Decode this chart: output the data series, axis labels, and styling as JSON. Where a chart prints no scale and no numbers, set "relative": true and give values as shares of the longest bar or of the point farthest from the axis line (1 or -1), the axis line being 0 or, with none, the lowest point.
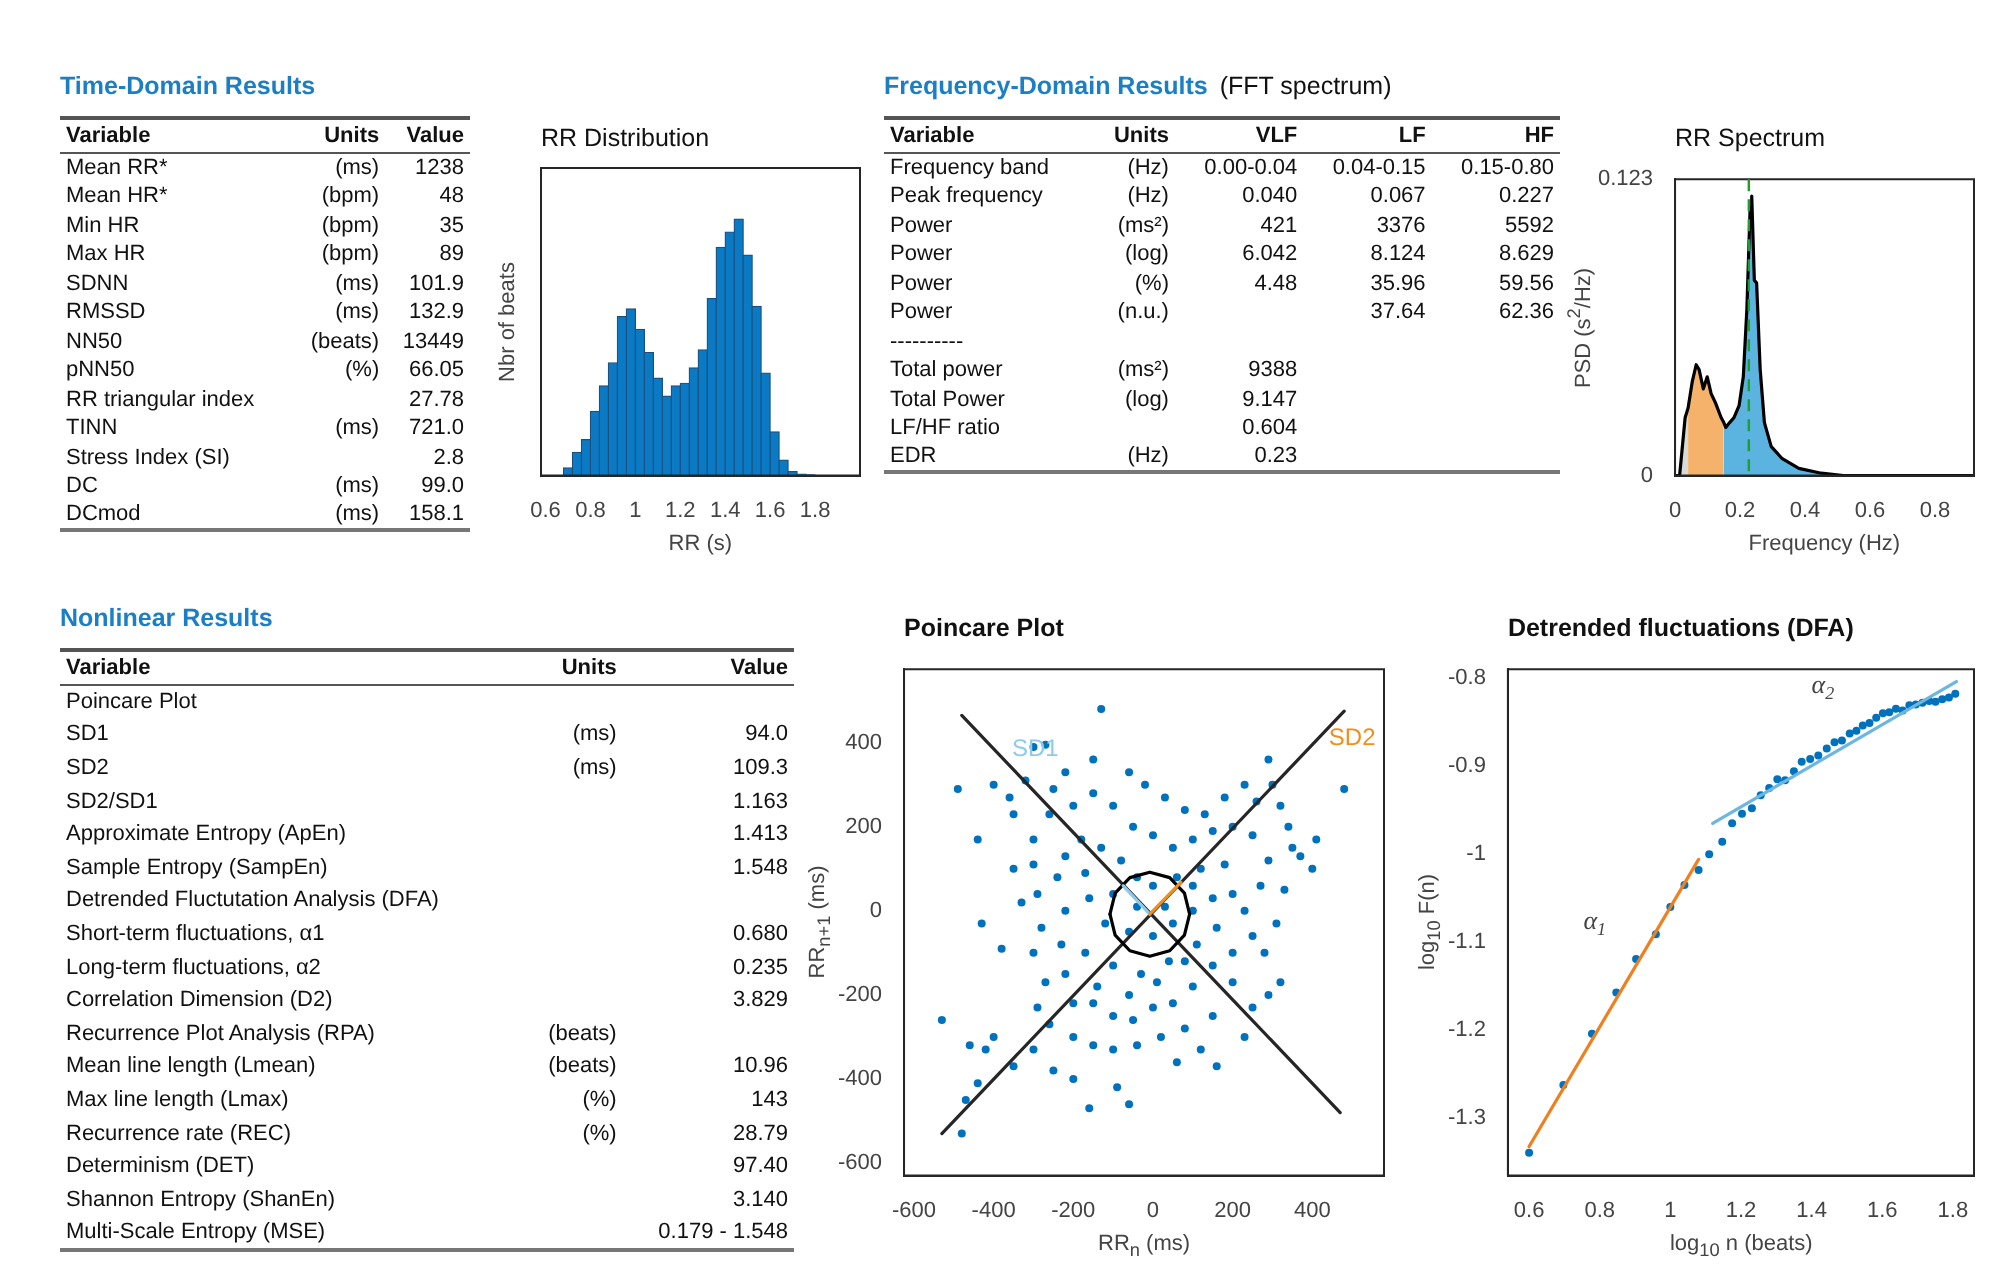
{
  "chart_data": [
    {
      "type": "other",
      "title": "Time-Domain Results",
      "categories": [
        "Variable",
        "Units",
        "Value"
      ],
      "annotations": [
        "Mean RR*",
        "(ms)",
        "1238",
        "Mean HR*",
        "(bpm)",
        "48",
        "Min HR",
        "(bpm)",
        "35",
        "Max HR",
        "(bpm)",
        "89",
        "SDNN",
        "(ms)",
        "101.9",
        "RMSSD",
        "(ms)",
        "132.9",
        "NN50",
        "(beats)",
        "13449",
        "pNN50",
        "(%)",
        "66.05",
        "RR triangular index",
        null,
        "27.78",
        "TINN",
        "(ms)",
        "721.0",
        "Stress Index (SI)",
        null,
        "2.8",
        "DC",
        "(ms)",
        "99.0",
        "DCmod",
        "(ms)",
        "158.1"
      ]
    },
    {
      "type": "bar",
      "title": "RR Distribution",
      "xlabel": "RR (s)",
      "ylabel": "Nbr of beats",
      "relative": true,
      "color": "#0b7ac4",
      "x": [
        0.7,
        0.74,
        0.78,
        0.82,
        0.86,
        0.9,
        0.94,
        0.98,
        1.02,
        1.06,
        1.1,
        1.14,
        1.18,
        1.22,
        1.26,
        1.3,
        1.34,
        1.38,
        1.42,
        1.46,
        1.5,
        1.54,
        1.58,
        1.62,
        1.66,
        1.7,
        1.74,
        1.78
      ],
      "values": [
        0.03,
        0.09,
        0.14,
        0.25,
        0.35,
        0.44,
        0.62,
        0.65,
        0.57,
        0.48,
        0.38,
        0.31,
        0.35,
        0.36,
        0.42,
        0.49,
        0.69,
        0.89,
        0.95,
        1,
        0.86,
        0.66,
        0.4,
        0.17,
        0.06,
        0.015,
        0.006,
        0.003
      ],
      "tick_labels": "x",
      "xlim": [
        0.58,
        2.0
      ],
      "xticks": [
        0.6,
        0.8,
        1,
        1.2,
        1.4,
        1.6,
        1.8
      ]
    },
    {
      "type": "other",
      "title": "Frequency-Domain Results",
      "subtitle": "(FFT spectrum)",
      "categories": [
        "Variable",
        "Units",
        "VLF",
        "LF",
        "HF"
      ],
      "annotations": [
        "Frequency band",
        "(Hz)",
        "0.00-0.04",
        "0.04-0.15",
        "0.15-0.80",
        "Peak frequency",
        "(Hz)",
        "0.040",
        "0.067",
        "0.227",
        "Power",
        "(ms²)",
        "421",
        "3376",
        "5592",
        "Power",
        "(log)",
        "6.042",
        "8.124",
        "8.629",
        "Power",
        "(%)",
        "4.48",
        "35.96",
        "59.56",
        "Power",
        "(n.u.)",
        null,
        "37.64",
        "62.36",
        "----------",
        null,
        null,
        null,
        null,
        "Total power",
        "(ms²)",
        "9388",
        null,
        null,
        "Total Power",
        "(log)",
        "9.147",
        null,
        null,
        "LF/HF ratio",
        null,
        "0.604",
        null,
        null,
        "EDR",
        "(Hz)",
        "0.23",
        null,
        null
      ]
    },
    {
      "type": "area",
      "title": "RR Spectrum",
      "xlabel": "Frequency (Hz)",
      "ylabel": "PSD (s$^{2}$/Hz)",
      "xlim": [
        0,
        0.92
      ],
      "xticks": [
        0,
        0.2,
        0.4,
        0.6,
        0.8
      ],
      "ylim": [
        0,
        0.123
      ],
      "yticks": [
        0,
        0.123
      ],
      "ref_lines": [
        {
          "axis": "x",
          "value": 0.227,
          "color": "#1f9e2c",
          "line_style": "dashed"
        }
      ],
      "series": [
        {
          "type": "area",
          "color": "#d9d9d9",
          "x": [
            0,
            0.014,
            0.031,
            0.04
          ],
          "values": [
            0,
            0,
            0.024,
            0.028
          ]
        },
        {
          "type": "area",
          "color": "#f4b26a",
          "x": [
            0.04,
            0.053,
            0.065,
            0.074,
            0.087,
            0.099,
            0.111,
            0.125,
            0.142,
            0.15
          ],
          "values": [
            0.028,
            0.039,
            0.046,
            0.044,
            0.036,
            0.041,
            0.034,
            0.03,
            0.024,
            0.022
          ]
        },
        {
          "type": "area",
          "color": "#5ab4df",
          "x": [
            0.15,
            0.156,
            0.168,
            0.181,
            0.197,
            0.21,
            0.221,
            0.231,
            0.236,
            0.244,
            0.251,
            0.262,
            0.275,
            0.296,
            0.33,
            0.381,
            0.45,
            0.518,
            0.92
          ],
          "values": [
            0.022,
            0.02,
            0.022,
            0.024,
            0.029,
            0.041,
            0.069,
            0.111,
            0.116,
            0.081,
            0.08,
            0.044,
            0.022,
            0.012,
            0.007,
            0.003,
            0.001,
            0,
            0
          ]
        },
        {
          "type": "line",
          "color": "#000000",
          "x": [
            0,
            0.014,
            0.031,
            0.04,
            0.053,
            0.065,
            0.074,
            0.087,
            0.099,
            0.111,
            0.125,
            0.142,
            0.15,
            0.156,
            0.168,
            0.181,
            0.197,
            0.21,
            0.221,
            0.231,
            0.236,
            0.244,
            0.251,
            0.262,
            0.275,
            0.296,
            0.33,
            0.381,
            0.45,
            0.518,
            0.92
          ],
          "values": [
            0,
            0,
            0.024,
            0.028,
            0.039,
            0.046,
            0.044,
            0.036,
            0.041,
            0.034,
            0.03,
            0.024,
            0.022,
            0.02,
            0.022,
            0.024,
            0.029,
            0.041,
            0.069,
            0.111,
            0.116,
            0.081,
            0.08,
            0.044,
            0.022,
            0.012,
            0.007,
            0.003,
            0.001,
            0,
            0
          ]
        }
      ]
    },
    {
      "type": "other",
      "title": "Nonlinear Results",
      "categories": [
        "Variable",
        "Units",
        "Value"
      ],
      "annotations": [
        "Poincare Plot",
        null,
        null,
        "SD1",
        "(ms)",
        "94.0",
        "SD2",
        "(ms)",
        "109.3",
        "SD2/SD1",
        null,
        "1.163",
        "Approximate Entropy (ApEn)",
        null,
        "1.413",
        "Sample Entropy (SampEn)",
        null,
        "1.548",
        "Detrended Fluctutation Analysis (DFA)",
        null,
        null,
        "Short-term fluctuations, α1",
        null,
        "0.680",
        "Long-term fluctuations, α2",
        null,
        "0.235",
        "Correlation Dimension (D2)",
        null,
        "3.829",
        "Recurrence Plot Analysis (RPA)",
        "(beats)",
        null,
        "Mean line length (Lmean)",
        "(beats)",
        "10.96",
        "Max line length (Lmax)",
        "(%)",
        "143",
        "Recurrence rate (REC)",
        "(%)",
        "28.79",
        "Determinism (DET)",
        null,
        "97.40",
        "Shannon Entropy (ShanEn)",
        null,
        "3.140",
        "Multi-Scale Entropy (MSE)",
        null,
        "0.179 - 1.548"
      ]
    },
    {
      "type": "scatter",
      "title": "Poincare Plot",
      "xlabel": "RR$_{n}$ (ms)",
      "ylabel": "RR$_{n+1}$ (ms)",
      "xlim": [
        -625,
        580
      ],
      "xticks": [
        -600,
        -400,
        -200,
        0,
        200,
        400
      ],
      "ylim": [
        -630,
        575
      ],
      "yticks": [
        -600,
        -400,
        -200,
        0,
        200,
        400
      ],
      "series": [
        {
          "type": "scatter",
          "color": "#0072bd",
          "marker": "circle",
          "x": [
            -130,
            -270,
            -300,
            -490,
            480,
            290,
            300,
            410,
            370,
            400,
            -530,
            -480,
            -470,
            -440,
            -420,
            -460,
            -400,
            -350,
            -160,
            -60,
            -90,
            60,
            160,
            120,
            -350,
            -430,
            -380,
            -330,
            -440,
            -400,
            -360,
            -320,
            -350,
            230,
            290,
            320,
            250,
            -200,
            -250,
            -300,
            -220,
            -150,
            -60,
            -20,
            30,
            80,
            130,
            180,
            230,
            260,
            320,
            340,
            350,
            330,
            310,
            280,
            200,
            150,
            80,
            20,
            -40,
            -100,
            -150,
            -200,
            -260,
            -290,
            -270,
            -300,
            -280,
            -290,
            -300,
            -300,
            -260,
            -250,
            -200,
            -180,
            -150,
            -100,
            -50,
            0,
            50,
            100,
            150,
            200,
            250,
            290,
            270,
            230,
            250,
            200,
            150,
            100,
            50,
            0,
            -50,
            -100,
            -150,
            -200,
            -220,
            -230,
            -220,
            -240,
            -220,
            -130,
            -80,
            -40,
            0,
            60,
            120,
            180,
            200,
            150,
            100,
            50,
            0,
            -60,
            -120,
            -160,
            -170,
            -100,
            -40,
            30,
            100,
            160,
            110,
            40,
            -30,
            -100,
            -170,
            -140,
            -60,
            10,
            80
          ],
          "values": [
            480,
            395,
            390,
            290,
            290,
            360,
            300,
            170,
            130,
            100,
            -260,
            -530,
            -450,
            -410,
            -330,
            -320,
            -300,
            -370,
            -470,
            -460,
            -420,
            -360,
            -370,
            -330,
            100,
            -30,
            -90,
            20,
            170,
            300,
            270,
            310,
            230,
            -300,
            -200,
            -170,
            -230,
            -400,
            -380,
            -330,
            330,
            360,
            330,
            300,
            270,
            240,
            230,
            270,
            300,
            260,
            250,
            200,
            150,
            50,
            -30,
            -100,
            -170,
            -250,
            -280,
            -300,
            -320,
            -330,
            -320,
            -300,
            -270,
            -230,
            -170,
            -100,
            -40,
            40,
            110,
            170,
            230,
            290,
            250,
            170,
            280,
            250,
            200,
            180,
            150,
            170,
            190,
            200,
            180,
            120,
            60,
            0,
            -60,
            -100,
            -130,
            -180,
            -220,
            -230,
            -260,
            -250,
            -220,
            -220,
            -150,
            -80,
            0,
            80,
            130,
            150,
            120,
            80,
            60,
            80,
            100,
            110,
            40,
            30,
            0,
            -30,
            -60,
            -50,
            -30,
            30,
            90,
            40,
            10,
            10,
            60,
            -40,
            -80,
            -120,
            -150,
            -130,
            -100,
            -180,
            -200,
            -170,
            -120
          ]
        },
        {
          "type": "line",
          "color": "#262626",
          "x": [
            -530,
            480
          ],
          "values": [
            -530,
            475
          ]
        },
        {
          "type": "line",
          "color": "#262626",
          "x": [
            -480,
            470
          ],
          "values": [
            465,
            -480
          ]
        },
        {
          "type": "line",
          "color": "#000000",
          "x": [
            92,
            79,
            42,
            -8,
            -58,
            -95,
            -108
          ],
          "values": [
            -8,
            42,
            79,
            92,
            79,
            42,
            -8
          ]
        },
        {
          "type": "line",
          "color": "#000000",
          "x": [
            -108,
            -95,
            -58,
            -8,
            42,
            79,
            92
          ],
          "values": [
            -8,
            -58,
            -95,
            -108,
            -95,
            -58,
            -8
          ]
        },
        {
          "type": "line",
          "name": "SD1",
          "color": "#8fcbe8",
          "x": [
            -8,
            -75
          ],
          "values": [
            -8,
            60
          ]
        },
        {
          "type": "line",
          "name": "SD2",
          "color": "#f28e1c",
          "x": [
            -8,
            70
          ],
          "values": [
            -8,
            68
          ]
        }
      ]
    },
    {
      "type": "scatter",
      "title": "Detrended fluctuations (DFA)",
      "xlabel": "log$_{10}$ n (beats)",
      "ylabel": "log$_{10}$ F(n)",
      "xlim": [
        0.54,
        1.86
      ],
      "xticks": [
        0.6,
        0.8,
        1,
        1.2,
        1.4,
        1.6,
        1.8
      ],
      "ylim": [
        -1.365,
        -0.79
      ],
      "yticks": [
        -1.3,
        -1.2,
        -1.1,
        -1,
        -0.9,
        -0.8
      ],
      "series": [
        {
          "type": "scatter",
          "color": "#0072bd",
          "marker": "circle",
          "x": [
            0.6,
            0.697,
            0.778,
            0.847,
            0.903,
            0.959,
            1.0,
            1.04,
            1.08,
            1.11,
            1.147,
            1.175,
            1.203,
            1.231,
            1.256,
            1.28,
            1.303,
            1.325,
            1.35,
            1.372,
            1.396,
            1.419,
            1.443,
            1.465,
            1.486,
            1.508,
            1.527,
            1.545,
            1.564,
            1.583,
            1.602,
            1.62,
            1.639,
            1.658,
            1.677,
            1.695,
            1.714,
            1.733,
            1.751,
            1.77,
            1.789,
            1.807
          ],
          "values": [
            -1.339,
            -1.262,
            -1.204,
            -1.157,
            -1.119,
            -1.091,
            -1.06,
            -1.035,
            -1.018,
            -1.0,
            -0.986,
            -0.965,
            -0.954,
            -0.948,
            -0.933,
            -0.925,
            -0.915,
            -0.916,
            -0.906,
            -0.895,
            -0.892,
            -0.888,
            -0.88,
            -0.873,
            -0.871,
            -0.863,
            -0.86,
            -0.854,
            -0.851,
            -0.845,
            -0.84,
            -0.839,
            -0.835,
            -0.837,
            -0.831,
            -0.83,
            -0.828,
            -0.826,
            -0.827,
            -0.824,
            -0.822,
            -0.818
          ]
        },
        {
          "type": "line",
          "name": "α$_{1}$",
          "color": "#f07f1e",
          "x": [
            0.6,
            1.08
          ],
          "values": [
            -1.332,
            -1.006
          ]
        },
        {
          "type": "line",
          "name": "α$_{2}$",
          "color": "#6cb6e0",
          "x": [
            1.12,
            1.81
          ],
          "values": [
            -0.965,
            -0.804
          ]
        }
      ]
    }
  ]
}
